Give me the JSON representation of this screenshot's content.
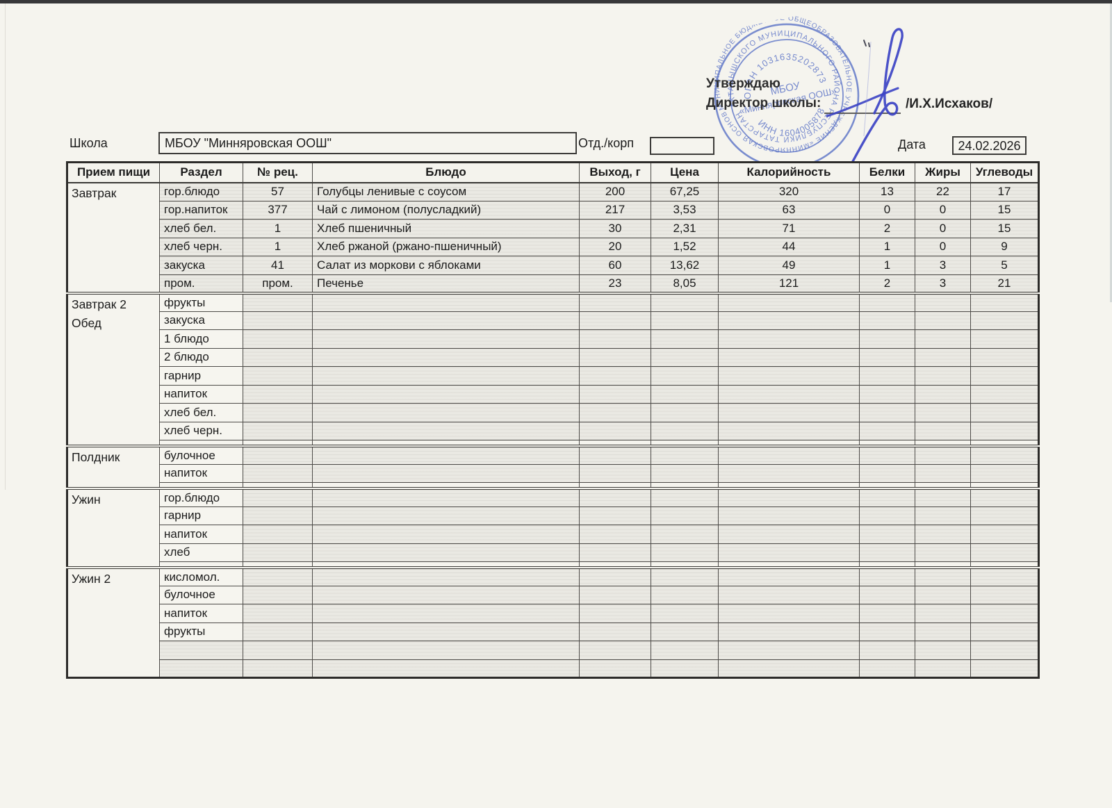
{
  "approval": {
    "approve": "Утверждаю",
    "director": "Директор школы:",
    "name": "/И.Х.Исхаков/"
  },
  "stamp": {
    "color": "#4661c1",
    "ring_outer": "МУНИЦИПАЛЬНОЕ БЮДЖЕТНОЕ ОБЩЕОБРАЗОВАТЕЛЬНОЕ УЧРЕЖДЕНИЕ «МИННЯРОВСКАЯ ОСНОВНАЯ ОБЩЕОБРАЗОВАТЕЛЬНАЯ ШКОЛА»",
    "ring_inner": "АКТАНЫШСКОГО МУНИЦИПАЛЬНОГО РАЙОНА РЕСПУБЛИКИ ТАТАРСТАН ★ ШКОЛА ★",
    "ogrn": "ОГРН 1031635202873",
    "inn": "ИНН 1604005878",
    "center_line1": "МБОУ",
    "center_line2": "«Минняровская ООШ»"
  },
  "form": {
    "school_label": "Школа",
    "school_value": "МБОУ \"Минняровская ООШ\"",
    "dept_label": "Отд./корп",
    "dept_value": "",
    "date_label": "Дата",
    "date_value": "24.02.2026"
  },
  "table": {
    "headers": [
      "Прием пищи",
      "Раздел",
      "№ рец.",
      "Блюдо",
      "Выход, г",
      "Цена",
      "Калорийность",
      "Белки",
      "Жиры",
      "Углеводы"
    ],
    "sections": [
      {
        "meal_labels": [
          "Завтрак"
        ],
        "thin_row": false,
        "rows": [
          {
            "cells": [
              "гор.блюдо",
              "57",
              "Голубцы ленивые с соусом",
              "200",
              "67,25",
              "320",
              "13",
              "22",
              "17"
            ]
          },
          {
            "cells": [
              "гор.напиток",
              "377",
              "Чай с лимоном (полусладкий)",
              "217",
              "3,53",
              "63",
              "0",
              "0",
              "15"
            ]
          },
          {
            "cells": [
              "хлеб бел.",
              "1",
              "Хлеб пшеничный",
              "30",
              "2,31",
              "71",
              "2",
              "0",
              "15"
            ]
          },
          {
            "cells": [
              "хлеб черн.",
              "1",
              "Хлеб ржаной (ржано-пшеничный)",
              "20",
              "1,52",
              "44",
              "1",
              "0",
              "9"
            ]
          },
          {
            "cells": [
              "закуска",
              "41",
              "Салат из моркови с яблоками",
              "60",
              "13,62",
              "49",
              "1",
              "3",
              "5"
            ]
          },
          {
            "cells": [
              "пром.",
              "пром.",
              "Печенье",
              "23",
              "8,05",
              "121",
              "2",
              "3",
              "21"
            ]
          }
        ]
      },
      {
        "meal_labels": [
          "Завтрак 2",
          "Обед"
        ],
        "thin_row": true,
        "rows": [
          {
            "cells": [
              "фрукты",
              "",
              "",
              "",
              "",
              "",
              "",
              "",
              ""
            ]
          },
          {
            "cells": [
              "закуска",
              "",
              "",
              "",
              "",
              "",
              "",
              "",
              ""
            ]
          },
          {
            "cells": [
              "1 блюдо",
              "",
              "",
              "",
              "",
              "",
              "",
              "",
              ""
            ]
          },
          {
            "cells": [
              "2 блюдо",
              "",
              "",
              "",
              "",
              "",
              "",
              "",
              ""
            ]
          },
          {
            "cells": [
              "гарнир",
              "",
              "",
              "",
              "",
              "",
              "",
              "",
              ""
            ]
          },
          {
            "cells": [
              "напиток",
              "",
              "",
              "",
              "",
              "",
              "",
              "",
              ""
            ]
          },
          {
            "cells": [
              "хлеб бел.",
              "",
              "",
              "",
              "",
              "",
              "",
              "",
              ""
            ]
          },
          {
            "cells": [
              "хлеб черн.",
              "",
              "",
              "",
              "",
              "",
              "",
              "",
              ""
            ]
          }
        ]
      },
      {
        "meal_labels": [
          "Полдник"
        ],
        "thin_row": true,
        "rows": [
          {
            "cells": [
              "булочное",
              "",
              "",
              "",
              "",
              "",
              "",
              "",
              ""
            ]
          },
          {
            "cells": [
              "напиток",
              "",
              "",
              "",
              "",
              "",
              "",
              "",
              ""
            ]
          }
        ]
      },
      {
        "meal_labels": [
          "Ужин"
        ],
        "thin_row": true,
        "rows": [
          {
            "cells": [
              "гор.блюдо",
              "",
              "",
              "",
              "",
              "",
              "",
              "",
              ""
            ]
          },
          {
            "cells": [
              "гарнир",
              "",
              "",
              "",
              "",
              "",
              "",
              "",
              ""
            ]
          },
          {
            "cells": [
              "напиток",
              "",
              "",
              "",
              "",
              "",
              "",
              "",
              ""
            ]
          },
          {
            "cells": [
              "хлеб",
              "",
              "",
              "",
              "",
              "",
              "",
              "",
              ""
            ]
          }
        ]
      },
      {
        "meal_labels": [
          "Ужин 2"
        ],
        "thin_row": false,
        "rows": [
          {
            "cells": [
              "кисломол.",
              "",
              "",
              "",
              "",
              "",
              "",
              "",
              ""
            ]
          },
          {
            "cells": [
              "булочное",
              "",
              "",
              "",
              "",
              "",
              "",
              "",
              ""
            ]
          },
          {
            "cells": [
              "напиток",
              "",
              "",
              "",
              "",
              "",
              "",
              "",
              ""
            ]
          },
          {
            "cells": [
              "фрукты",
              "",
              "",
              "",
              "",
              "",
              "",
              "",
              ""
            ]
          },
          {
            "cells": [
              "",
              "",
              "",
              "",
              "",
              "",
              "",
              "",
              ""
            ]
          },
          {
            "cells": [
              "",
              "",
              "",
              "",
              "",
              "",
              "",
              "",
              ""
            ]
          }
        ]
      }
    ]
  }
}
